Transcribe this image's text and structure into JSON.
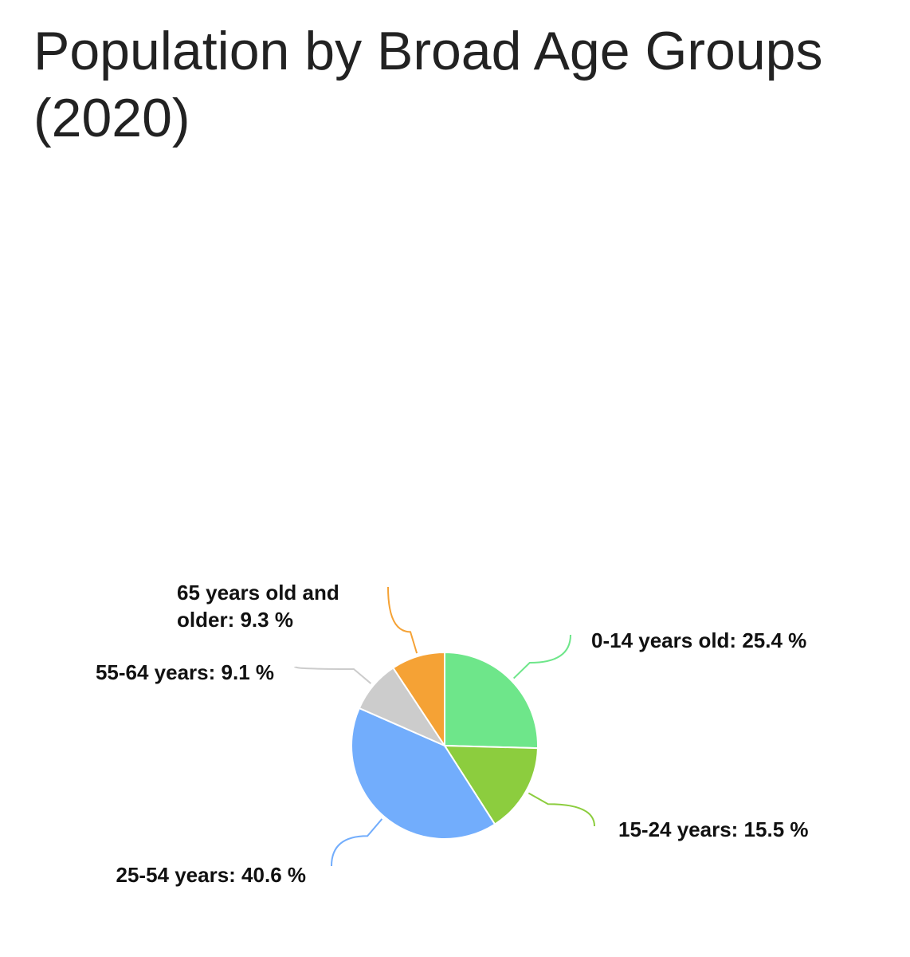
{
  "chart_data": {
    "type": "pie",
    "title": "Population by Broad Age Groups (2020)",
    "slices": [
      {
        "label": "0-14 years old",
        "value": 25.4,
        "value_text": "25.4 %",
        "color": "#6ee68a"
      },
      {
        "label": "15-24 years",
        "value": 15.5,
        "value_text": "15.5 %",
        "color": "#8ccd3e"
      },
      {
        "label": "25-54 years",
        "value": 40.6,
        "value_text": "40.6 %",
        "color": "#72adfc"
      },
      {
        "label": "55-64 years",
        "value": 9.1,
        "value_text": "9.1 %",
        "color": "#cccccc"
      },
      {
        "label": "65 years old and older",
        "value": 9.3,
        "value_text": "9.3 %",
        "color": "#f5a235"
      }
    ],
    "legend": "none",
    "data_labels": "outside-with-leader-lines"
  }
}
